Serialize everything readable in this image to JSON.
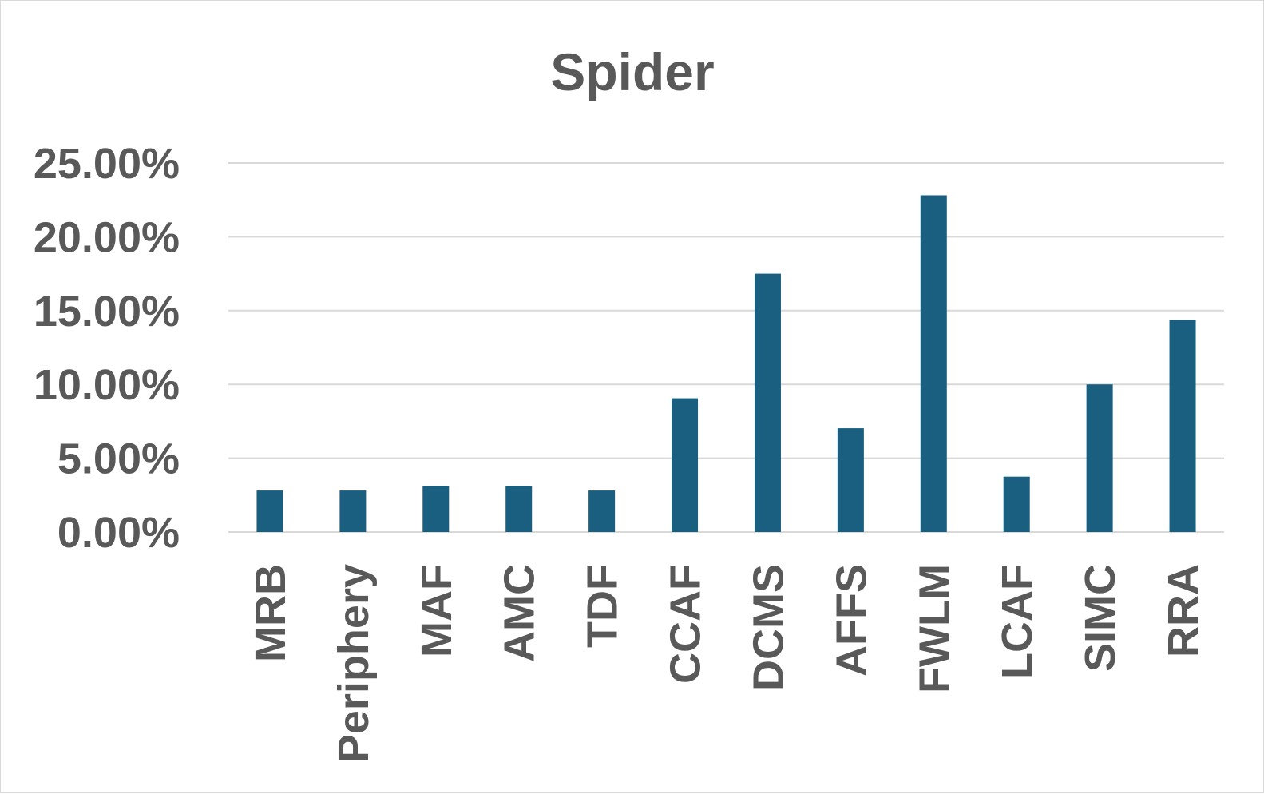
{
  "chart_data": {
    "type": "bar",
    "title": "Spider",
    "xlabel": "",
    "ylabel": "",
    "categories": [
      "MRB",
      "Periphery",
      "MAF",
      "AMC",
      "TDF",
      "CCAF",
      "DCMS",
      "AFFS",
      "FWLM",
      "LCAF",
      "SIMC",
      "RRA"
    ],
    "values": [
      0.0281,
      0.0281,
      0.0313,
      0.0313,
      0.0281,
      0.0906,
      0.175,
      0.0703,
      0.2281,
      0.0375,
      0.1,
      0.1438
    ],
    "ylim": [
      0,
      0.25
    ],
    "yticks": [
      0,
      0.05,
      0.1,
      0.15,
      0.2,
      0.25
    ],
    "ytick_labels": [
      "0.00%",
      "5.00%",
      "10.00%",
      "15.00%",
      "20.00%",
      "25.00%"
    ],
    "grid": true,
    "legend": "none",
    "bar_color": "#1a5e80"
  }
}
